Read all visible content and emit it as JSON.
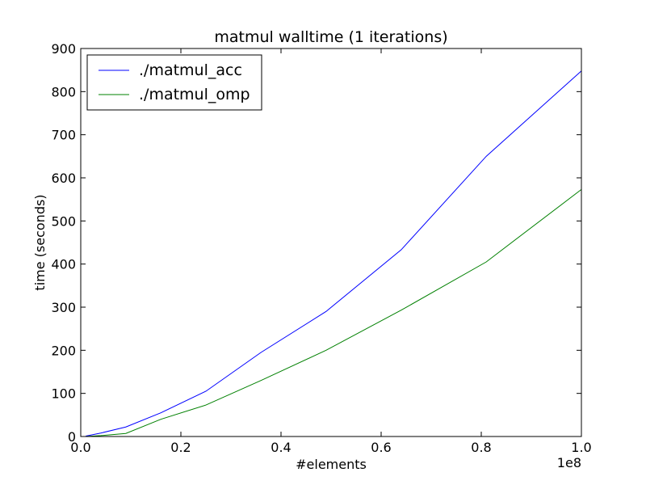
{
  "chart_data": {
    "type": "line",
    "title": "matmul walltime (1 iterations)",
    "xlabel": "#elements",
    "ylabel": "time (seconds)",
    "x_offset_label": "1e8",
    "xlim": [
      0,
      1.0
    ],
    "ylim": [
      0,
      900
    ],
    "x_ticks": [
      0,
      0.2,
      0.4,
      0.6,
      0.8,
      1.0
    ],
    "x_tick_labels": [
      "0.0",
      "0.2",
      "0.4",
      "0.6",
      "0.8",
      "1.0"
    ],
    "y_ticks": [
      0,
      100,
      200,
      300,
      400,
      500,
      600,
      700,
      800,
      900
    ],
    "y_tick_labels": [
      "0",
      "100",
      "200",
      "300",
      "400",
      "500",
      "600",
      "700",
      "800",
      "900"
    ],
    "grid": false,
    "legend_position": "upper-left",
    "series": [
      {
        "name": "./matmul_acc",
        "color": "#0000ff",
        "x": [
          0.01,
          0.04,
          0.09,
          0.16,
          0.25,
          0.36,
          0.49,
          0.64,
          0.81,
          1.0
        ],
        "y": [
          1,
          8,
          22,
          55,
          105,
          195,
          290,
          433,
          650,
          848
        ]
      },
      {
        "name": "./matmul_omp",
        "color": "#008000",
        "x": [
          0.01,
          0.04,
          0.09,
          0.16,
          0.25,
          0.36,
          0.49,
          0.64,
          0.81,
          1.0
        ],
        "y": [
          0,
          2,
          7,
          40,
          73,
          130,
          200,
          293,
          405,
          573
        ]
      }
    ]
  }
}
